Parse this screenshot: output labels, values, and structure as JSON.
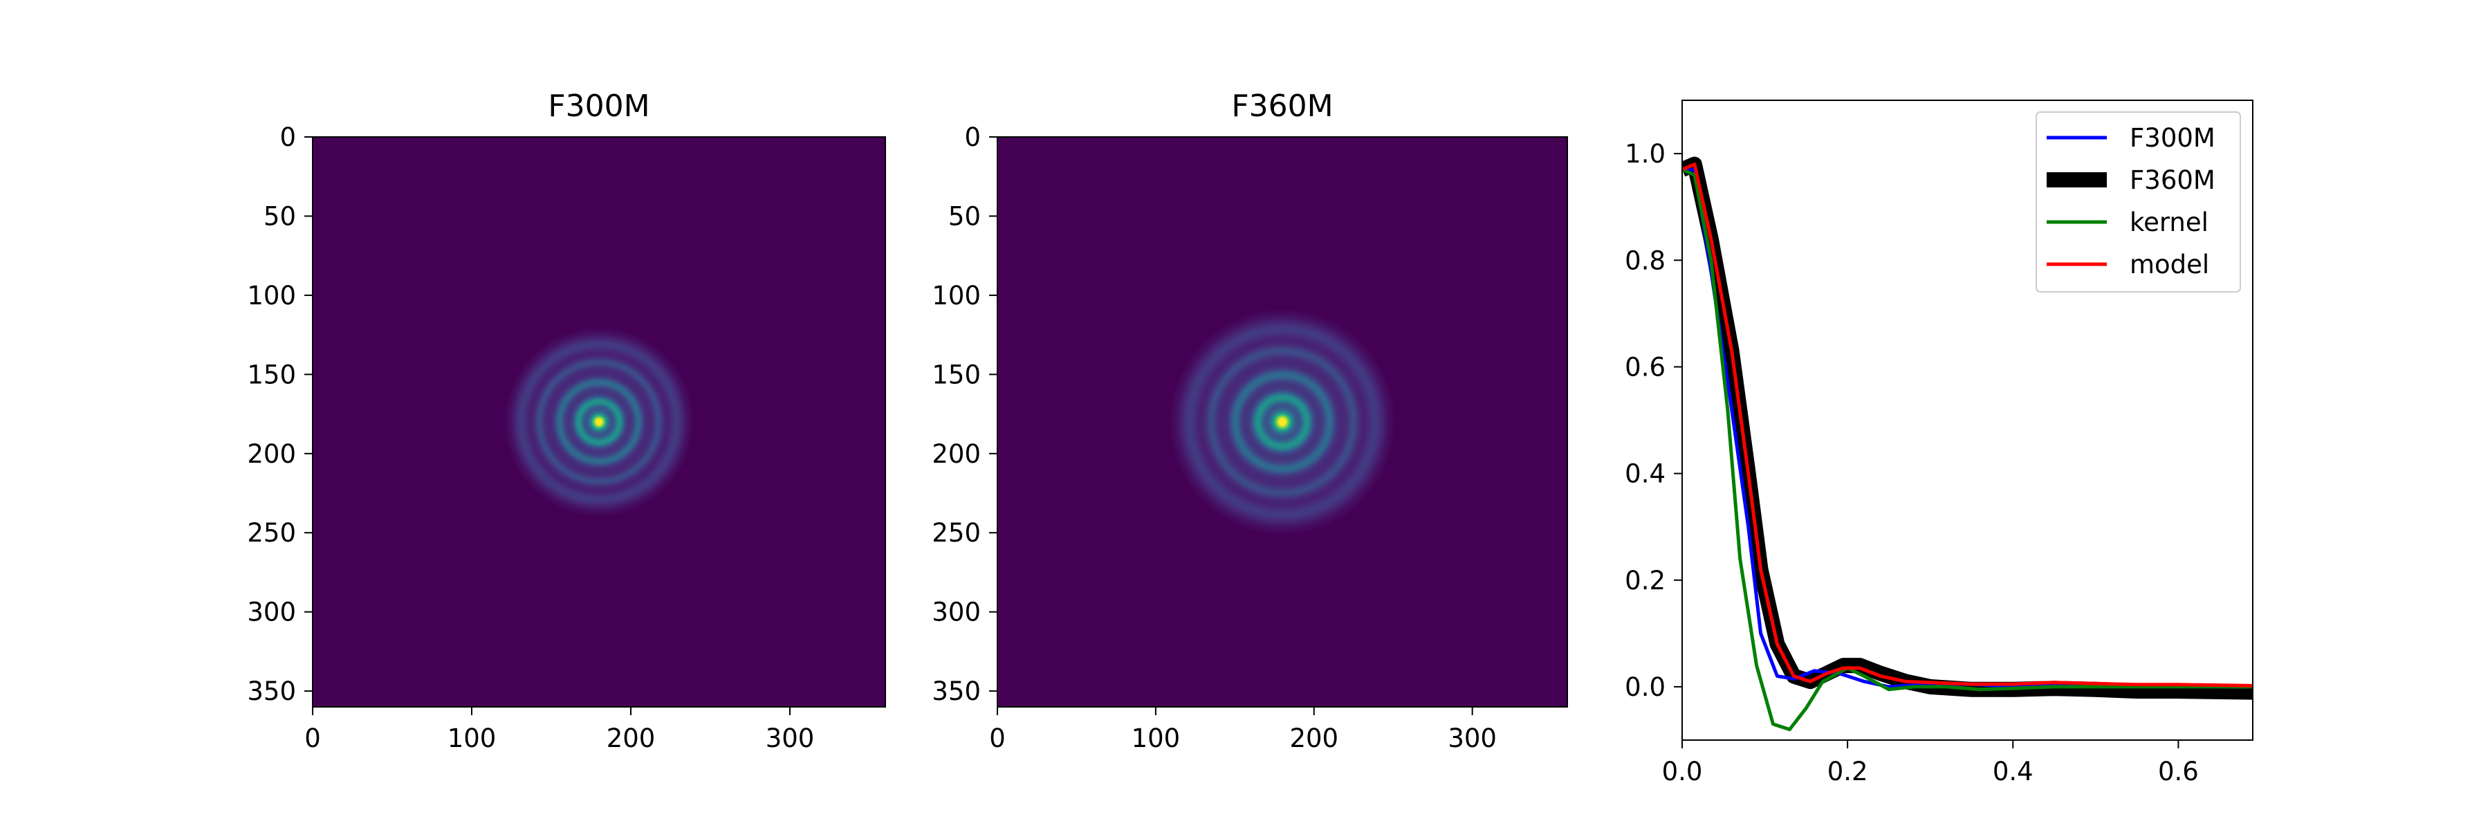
{
  "chart_data": [
    {
      "type": "heatmap",
      "title": "F300M",
      "colormap": "viridis",
      "xlim": [
        0,
        360
      ],
      "ylim": [
        0,
        360
      ],
      "y_inverted": true,
      "xticks": [
        "0",
        "100",
        "200",
        "300"
      ],
      "yticks": [
        "0",
        "50",
        "100",
        "150",
        "200",
        "250",
        "300",
        "350"
      ],
      "center": [
        180,
        180
      ],
      "ring_extent_radius": 60
    },
    {
      "type": "heatmap",
      "title": "F360M",
      "colormap": "viridis",
      "xlim": [
        0,
        360
      ],
      "ylim": [
        0,
        360
      ],
      "y_inverted": true,
      "xticks": [
        "0",
        "100",
        "200",
        "300"
      ],
      "yticks": [
        "0",
        "50",
        "100",
        "150",
        "200",
        "250",
        "300",
        "350"
      ],
      "center": [
        180,
        180
      ],
      "ring_extent_radius": 72
    },
    {
      "type": "line",
      "title": "",
      "xlabel": "",
      "ylabel": "",
      "xlim": [
        0,
        0.69
      ],
      "ylim": [
        -0.1,
        1.1
      ],
      "xticks": [
        "0.0",
        "0.2",
        "0.4",
        "0.6"
      ],
      "yticks": [
        "0.0",
        "0.2",
        "0.4",
        "0.6",
        "0.8",
        "1.0"
      ],
      "legend_position": "top-right",
      "series": [
        {
          "name": "F300M",
          "color": "#0000ff",
          "points": [
            [
              0.0,
              0.97
            ],
            [
              0.015,
              0.97
            ],
            [
              0.035,
              0.78
            ],
            [
              0.06,
              0.52
            ],
            [
              0.08,
              0.3
            ],
            [
              0.095,
              0.1
            ],
            [
              0.115,
              0.02
            ],
            [
              0.135,
              0.015
            ],
            [
              0.16,
              0.03
            ],
            [
              0.19,
              0.025
            ],
            [
              0.22,
              0.01
            ],
            [
              0.25,
              0.0
            ],
            [
              0.3,
              0.005
            ],
            [
              0.35,
              0.005
            ],
            [
              0.4,
              0.0
            ],
            [
              0.45,
              0.002
            ],
            [
              0.5,
              0.0
            ],
            [
              0.55,
              0.0
            ],
            [
              0.6,
              0.0
            ],
            [
              0.69,
              0.0
            ]
          ]
        },
        {
          "name": "F360M",
          "color": "#000000",
          "points": [
            [
              0.0,
              0.97
            ],
            [
              0.015,
              0.98
            ],
            [
              0.035,
              0.84
            ],
            [
              0.06,
              0.63
            ],
            [
              0.08,
              0.4
            ],
            [
              0.095,
              0.22
            ],
            [
              0.115,
              0.08
            ],
            [
              0.135,
              0.02
            ],
            [
              0.155,
              0.01
            ],
            [
              0.175,
              0.025
            ],
            [
              0.195,
              0.04
            ],
            [
              0.215,
              0.04
            ],
            [
              0.24,
              0.025
            ],
            [
              0.27,
              0.01
            ],
            [
              0.3,
              0.0
            ],
            [
              0.35,
              -0.005
            ],
            [
              0.4,
              -0.005
            ],
            [
              0.45,
              -0.003
            ],
            [
              0.5,
              -0.005
            ],
            [
              0.55,
              -0.008
            ],
            [
              0.6,
              -0.008
            ],
            [
              0.69,
              -0.01
            ]
          ]
        },
        {
          "name": "kernel",
          "color": "#008000",
          "points": [
            [
              0.0,
              0.97
            ],
            [
              0.015,
              0.96
            ],
            [
              0.035,
              0.8
            ],
            [
              0.055,
              0.52
            ],
            [
              0.07,
              0.24
            ],
            [
              0.09,
              0.04
            ],
            [
              0.11,
              -0.07
            ],
            [
              0.13,
              -0.08
            ],
            [
              0.15,
              -0.04
            ],
            [
              0.17,
              0.01
            ],
            [
              0.2,
              0.035
            ],
            [
              0.22,
              0.02
            ],
            [
              0.25,
              -0.005
            ],
            [
              0.28,
              0.0
            ],
            [
              0.32,
              0.0
            ],
            [
              0.36,
              -0.005
            ],
            [
              0.4,
              -0.003
            ],
            [
              0.45,
              0.0
            ],
            [
              0.5,
              0.0
            ],
            [
              0.6,
              0.0
            ],
            [
              0.69,
              0.0
            ]
          ]
        },
        {
          "name": "model",
          "color": "#ff0000",
          "points": [
            [
              0.0,
              0.97
            ],
            [
              0.015,
              0.98
            ],
            [
              0.035,
              0.84
            ],
            [
              0.06,
              0.63
            ],
            [
              0.08,
              0.4
            ],
            [
              0.095,
              0.22
            ],
            [
              0.115,
              0.08
            ],
            [
              0.135,
              0.02
            ],
            [
              0.155,
              0.01
            ],
            [
              0.175,
              0.025
            ],
            [
              0.195,
              0.035
            ],
            [
              0.215,
              0.035
            ],
            [
              0.24,
              0.02
            ],
            [
              0.27,
              0.01
            ],
            [
              0.3,
              0.008
            ],
            [
              0.35,
              0.005
            ],
            [
              0.4,
              0.005
            ],
            [
              0.45,
              0.008
            ],
            [
              0.5,
              0.006
            ],
            [
              0.55,
              0.004
            ],
            [
              0.6,
              0.004
            ],
            [
              0.69,
              0.002
            ]
          ]
        }
      ]
    }
  ]
}
